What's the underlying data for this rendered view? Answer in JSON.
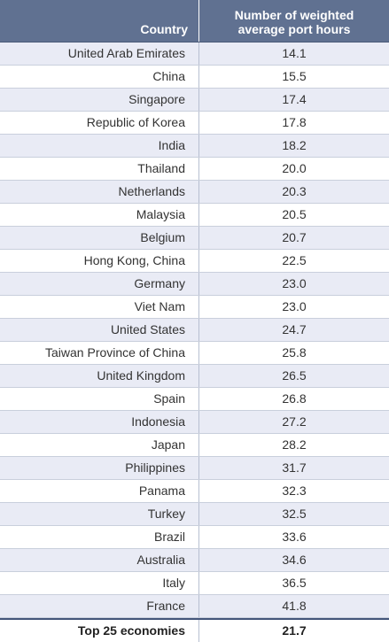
{
  "table": {
    "headers": {
      "country": "Country",
      "value_line1": "Number of weighted",
      "value_line2": "average port hours"
    },
    "rows": [
      {
        "country": "United Arab Emirates",
        "value": "14.1"
      },
      {
        "country": "China",
        "value": "15.5"
      },
      {
        "country": "Singapore",
        "value": "17.4"
      },
      {
        "country": "Republic of Korea",
        "value": "17.8"
      },
      {
        "country": "India",
        "value": "18.2"
      },
      {
        "country": "Thailand",
        "value": "20.0"
      },
      {
        "country": "Netherlands",
        "value": "20.3"
      },
      {
        "country": "Malaysia",
        "value": "20.5"
      },
      {
        "country": "Belgium",
        "value": "20.7"
      },
      {
        "country": "Hong Kong, China",
        "value": "22.5"
      },
      {
        "country": "Germany",
        "value": "23.0"
      },
      {
        "country": "Viet Nam",
        "value": "23.0"
      },
      {
        "country": "United States",
        "value": "24.7"
      },
      {
        "country": "Taiwan Province of China",
        "value": "25.8"
      },
      {
        "country": "United Kingdom",
        "value": "26.5"
      },
      {
        "country": "Spain",
        "value": "26.8"
      },
      {
        "country": "Indonesia",
        "value": "27.2"
      },
      {
        "country": "Japan",
        "value": "28.2"
      },
      {
        "country": "Philippines",
        "value": "31.7"
      },
      {
        "country": "Panama",
        "value": "32.3"
      },
      {
        "country": "Turkey",
        "value": "32.5"
      },
      {
        "country": "Brazil",
        "value": "33.6"
      },
      {
        "country": "Australia",
        "value": "34.6"
      },
      {
        "country": "Italy",
        "value": "36.5"
      },
      {
        "country": "France",
        "value": "41.8"
      }
    ],
    "total": {
      "label": "Top 25 economies",
      "value": "21.7"
    }
  },
  "colors": {
    "header_bg": "#607191",
    "alt_row_bg": "#e9ebf5",
    "total_border": "#44557a"
  }
}
